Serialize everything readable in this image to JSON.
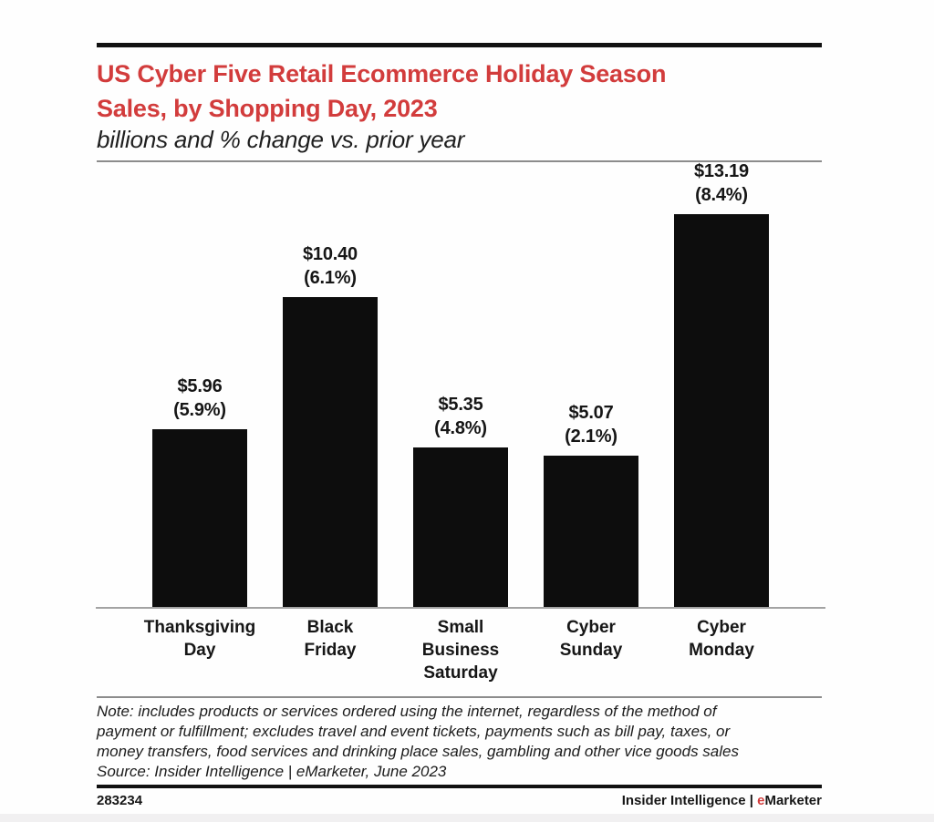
{
  "header": {
    "title_line1": "US Cyber Five Retail Ecommerce Holiday Season",
    "title_line2": "Sales, by Shopping Day, 2023",
    "subtitle": "billions and % change vs. prior year",
    "title_color": "#d23c3c"
  },
  "chart_data": {
    "type": "bar",
    "title": "US Cyber Five Retail Ecommerce Holiday Season Sales, by Shopping Day, 2023",
    "subtitle": "billions and % change vs. prior year",
    "unit": "USD billions",
    "categories": [
      "Thanksgiving\nDay",
      "Black\nFriday",
      "Small\nBusiness\nSaturday",
      "Cyber\nSunday",
      "Cyber\nMonday"
    ],
    "values": [
      5.96,
      10.4,
      5.35,
      5.07,
      13.19
    ],
    "pct_change_vs_prior_year": [
      5.9,
      6.1,
      4.8,
      2.1,
      8.4
    ],
    "value_labels": [
      "$5.96",
      "$10.40",
      "$5.35",
      "$5.07",
      "$13.19"
    ],
    "pct_labels": [
      "(5.9%)",
      "(6.1%)",
      "(4.8%)",
      "(2.1%)",
      "(8.4%)"
    ],
    "xlabel": "",
    "ylabel": "",
    "ylim": [
      0,
      13.19
    ],
    "grid": false,
    "legend": "none",
    "bar_color": "#0d0d0d"
  },
  "note": {
    "text": "Note: includes products or services ordered using the internet, regardless of the method of\npayment or fulfillment; excludes travel and event tickets, payments such as bill pay, taxes, or\nmoney transfers, food services and drinking place sales, gambling and other vice goods sales",
    "source": "Source: Insider Intelligence | eMarketer, June 2023"
  },
  "footer": {
    "chart_id": "283234",
    "brand_prefix": "Insider Intelligence | ",
    "brand_e": "e",
    "brand_rest": "Marketer"
  }
}
